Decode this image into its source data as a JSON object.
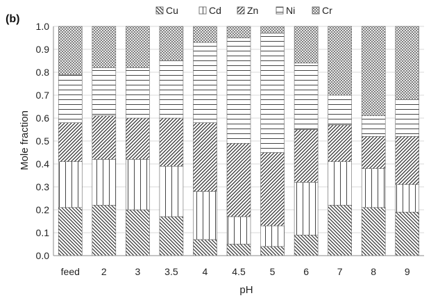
{
  "chart_data": {
    "type": "bar",
    "stacked": true,
    "panel_label": "(b)",
    "xlabel": "pH",
    "ylabel": "Mole fraction",
    "ylim": [
      0,
      1.0
    ],
    "yticks": [
      "0.0",
      "0.1",
      "0.2",
      "0.3",
      "0.4",
      "0.5",
      "0.6",
      "0.7",
      "0.8",
      "0.9",
      "1.0"
    ],
    "categories": [
      "feed",
      "2",
      "3",
      "3.5",
      "4",
      "4.5",
      "5",
      "6",
      "7",
      "8",
      "9"
    ],
    "legend_position": "top",
    "series": [
      {
        "name": "Cu",
        "pattern": "diagonal-down",
        "values": [
          0.21,
          0.22,
          0.2,
          0.17,
          0.07,
          0.05,
          0.04,
          0.09,
          0.22,
          0.21,
          0.19
        ]
      },
      {
        "name": "Cd",
        "pattern": "vertical",
        "values": [
          0.2,
          0.2,
          0.22,
          0.22,
          0.21,
          0.12,
          0.09,
          0.23,
          0.19,
          0.17,
          0.12
        ]
      },
      {
        "name": "Zn",
        "pattern": "diagonal-up",
        "values": [
          0.17,
          0.19,
          0.18,
          0.21,
          0.3,
          0.32,
          0.32,
          0.23,
          0.16,
          0.14,
          0.21
        ]
      },
      {
        "name": "Ni",
        "pattern": "horizontal",
        "values": [
          0.21,
          0.21,
          0.22,
          0.25,
          0.35,
          0.46,
          0.52,
          0.29,
          0.13,
          0.09,
          0.16
        ]
      },
      {
        "name": "Cr",
        "pattern": "crosshatch",
        "values": [
          0.21,
          0.18,
          0.18,
          0.15,
          0.07,
          0.05,
          0.03,
          0.16,
          0.3,
          0.39,
          0.32
        ]
      }
    ]
  }
}
